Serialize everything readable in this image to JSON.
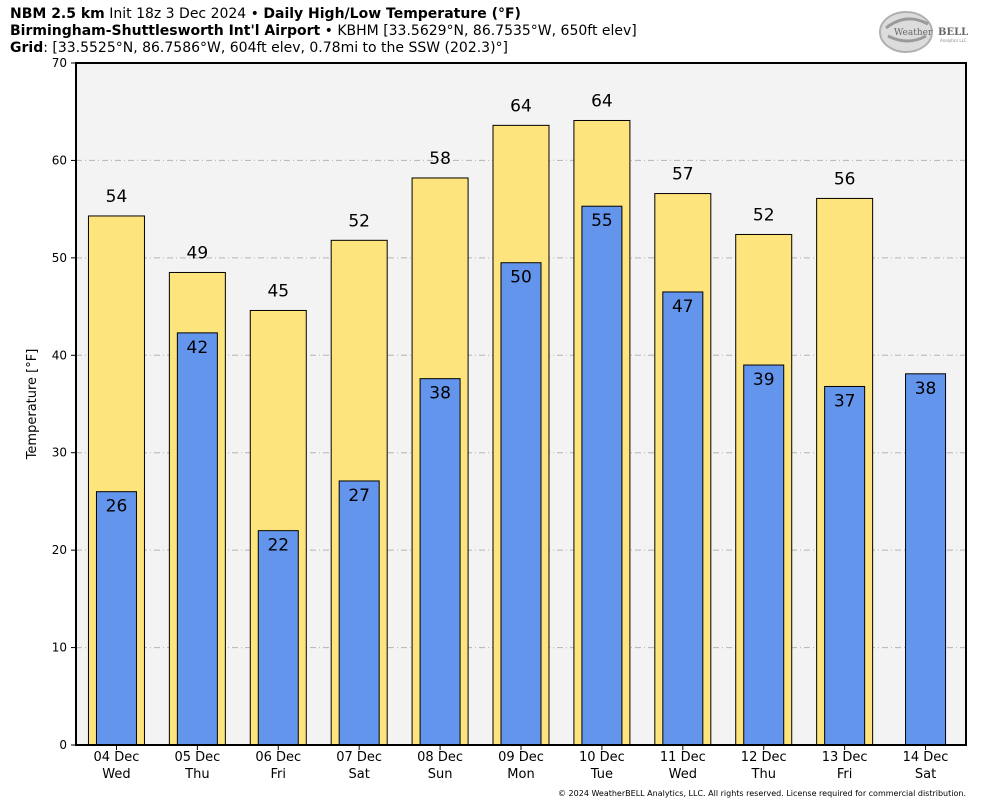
{
  "header": {
    "line1_bold_a": "NBM 2.5 km",
    "line1_text": " Init 18z 3 Dec 2024 • ",
    "line1_bold_b": "Daily High/Low Temperature (°F)",
    "line2_bold": "Birmingham-Shuttlesworth Int'l Airport",
    "line2_text": " • KBHM [33.5629°N, 86.7535°W, 650ft elev]",
    "line3_bold": "Grid",
    "line3_text": ": [33.5525°N, 86.7586°W, 604ft elev, 0.78mi to the SSW (202.3)°]"
  },
  "logo": {
    "text_a": "Weather",
    "text_b": "BELL",
    "sub": "Analytics LLC"
  },
  "copyright": "© 2024 WeatherBELL Analytics, LLC. All rights reserved. License required for commercial distribution.",
  "chart_data": {
    "type": "bar",
    "ylabel": "Temperature [°F]",
    "ylim": [
      0,
      70
    ],
    "yticks": [
      0,
      10,
      20,
      30,
      40,
      50,
      60,
      70
    ],
    "grid": true,
    "categories": [
      {
        "date": "04 Dec",
        "day": "Wed"
      },
      {
        "date": "05 Dec",
        "day": "Thu"
      },
      {
        "date": "06 Dec",
        "day": "Fri"
      },
      {
        "date": "07 Dec",
        "day": "Sat"
      },
      {
        "date": "08 Dec",
        "day": "Sun"
      },
      {
        "date": "09 Dec",
        "day": "Mon"
      },
      {
        "date": "10 Dec",
        "day": "Tue"
      },
      {
        "date": "11 Dec",
        "day": "Wed"
      },
      {
        "date": "12 Dec",
        "day": "Thu"
      },
      {
        "date": "13 Dec",
        "day": "Fri"
      },
      {
        "date": "14 Dec",
        "day": "Sat"
      }
    ],
    "series": [
      {
        "values": [
          54.3,
          48.5,
          44.6,
          51.8,
          58.2,
          63.6,
          64.1,
          56.6,
          52.4,
          56.1,
          null
        ],
        "labels": [
          "54",
          "49",
          "45",
          "52",
          "58",
          "64",
          "64",
          "57",
          "52",
          "56",
          ""
        ],
        "color": "#fde47c"
      },
      {
        "values": [
          26.0,
          42.3,
          22.0,
          27.1,
          37.6,
          49.5,
          55.3,
          46.5,
          39.0,
          36.8,
          38.1
        ],
        "labels": [
          "26",
          "42",
          "22",
          "27",
          "38",
          "50",
          "55",
          "47",
          "39",
          "37",
          "38"
        ],
        "color": "#6495ed"
      }
    ]
  }
}
